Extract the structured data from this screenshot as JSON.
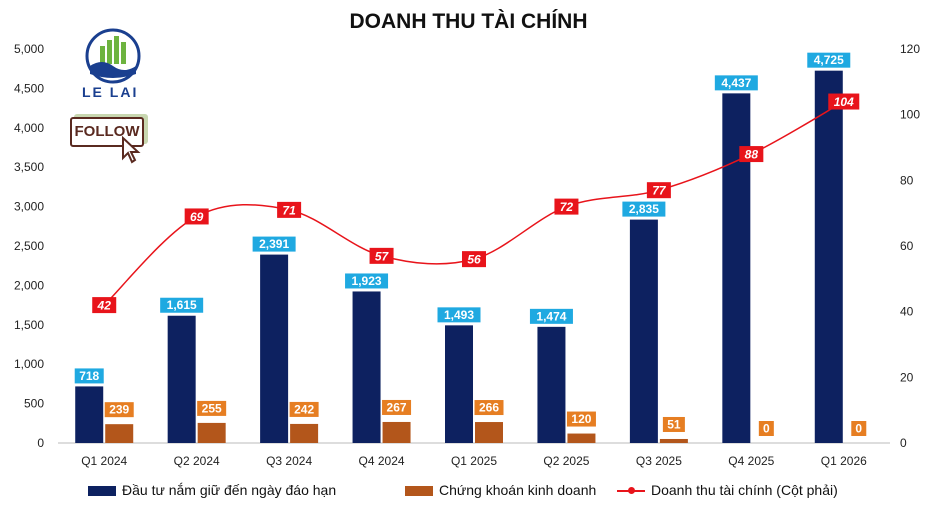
{
  "brand": {
    "name": "LE LAI",
    "follow_label": "FOLLOW"
  },
  "chart_data": {
    "type": "bar",
    "title": "DOANH THU TÀI CHÍNH",
    "categories": [
      "Q1 2024",
      "Q2 2024",
      "Q3 2024",
      "Q4 2024",
      "Q1 2025",
      "Q2 2025",
      "Q3 2025",
      "Q4 2025",
      "Q1 2026"
    ],
    "series": [
      {
        "name": "Đầu tư nắm giữ đến ngày đáo hạn",
        "type": "bar",
        "axis": "left",
        "color": "#0d2160",
        "label_color": "#1fa9e1",
        "values": [
          718,
          1615,
          2391,
          1923,
          1493,
          1474,
          2835,
          4437,
          4725
        ],
        "labels": [
          "718",
          "1,615",
          "2,391",
          "1,923",
          "1,493",
          "1,474",
          "2,835",
          "4,437",
          "4,725"
        ]
      },
      {
        "name": "Chứng khoán kinh doanh",
        "type": "bar",
        "axis": "left",
        "color": "#b3561b",
        "label_color": "#e67e22",
        "values": [
          239,
          255,
          242,
          267,
          266,
          120,
          51,
          0,
          0
        ],
        "labels": [
          "239",
          "255",
          "242",
          "267",
          "266",
          "120",
          "51",
          "0",
          "0"
        ]
      },
      {
        "name": "Doanh thu tài chính (Cột phải)",
        "type": "line",
        "axis": "right",
        "color": "#e8141b",
        "label_color": "#e8141b",
        "values": [
          42,
          69,
          71,
          57,
          56,
          72,
          77,
          88,
          104
        ],
        "labels": [
          "42",
          "69",
          "71",
          "57",
          "56",
          "72",
          "77",
          "88",
          "104"
        ]
      }
    ],
    "y_left": {
      "min": 0,
      "max": 5000,
      "step": 500,
      "tick_labels": [
        "0",
        "500",
        "1,000",
        "1,500",
        "2,000",
        "2,500",
        "3,000",
        "3,500",
        "4,000",
        "4,500",
        "5,000"
      ]
    },
    "y_right": {
      "min": 0,
      "max": 120,
      "step": 20,
      "tick_labels": [
        "0",
        "20",
        "40",
        "60",
        "80",
        "100",
        "120"
      ]
    },
    "legend_position": "bottom",
    "grid": false
  }
}
